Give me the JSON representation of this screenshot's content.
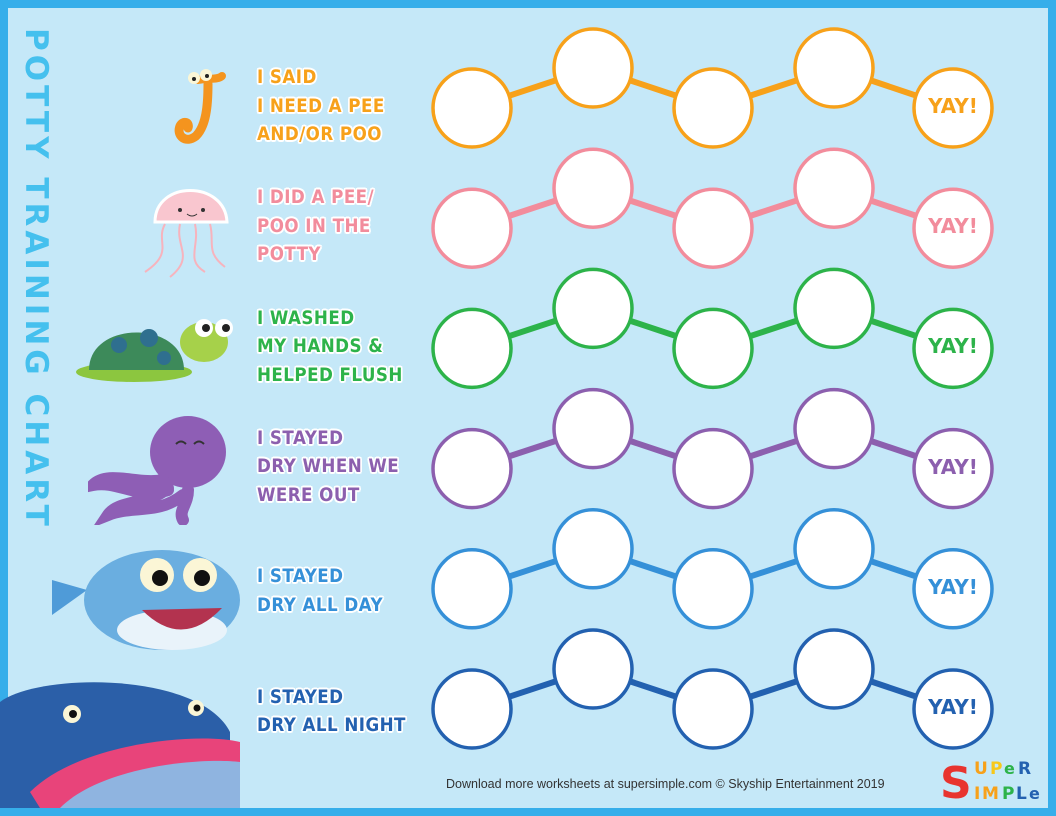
{
  "title": "POTTY TRAINING CHART",
  "rows": [
    {
      "lines": [
        "I SAID",
        "I NEED A PEE",
        "AND/OR POO"
      ],
      "color": "#f7a11a",
      "animal": "seahorse-icon",
      "reward": "YAY!"
    },
    {
      "lines": [
        "I DID A PEE/",
        "POO IN THE",
        "POTTY"
      ],
      "color": "#f28c9c",
      "animal": "jellyfish-icon",
      "reward": "YAY!"
    },
    {
      "lines": [
        "I WASHED",
        "MY HANDS &",
        "HELPED FLUSH"
      ],
      "color": "#2db34a",
      "animal": "turtle-icon",
      "reward": "YAY!"
    },
    {
      "lines": [
        "I STAYED",
        "DRY WHEN WE",
        "WERE OUT"
      ],
      "color": "#8c5fae",
      "animal": "octopus-icon",
      "reward": "YAY!"
    },
    {
      "lines": [
        "I STAYED",
        "DRY ALL DAY"
      ],
      "color": "#3590d8",
      "animal": "shark-icon",
      "reward": "YAY!"
    },
    {
      "lines": [
        "I STAYED",
        "DRY ALL NIGHT"
      ],
      "color": "#2361b0",
      "animal": "whale-icon",
      "reward": "YAY!"
    }
  ],
  "footer": "Download more worksheets at supersimple.com   © Skyship Entertainment 2019",
  "logo": "Super Simple",
  "colors": {
    "border": "#36aeea",
    "background": "#c5e8f8",
    "title": "#45c0ee"
  }
}
